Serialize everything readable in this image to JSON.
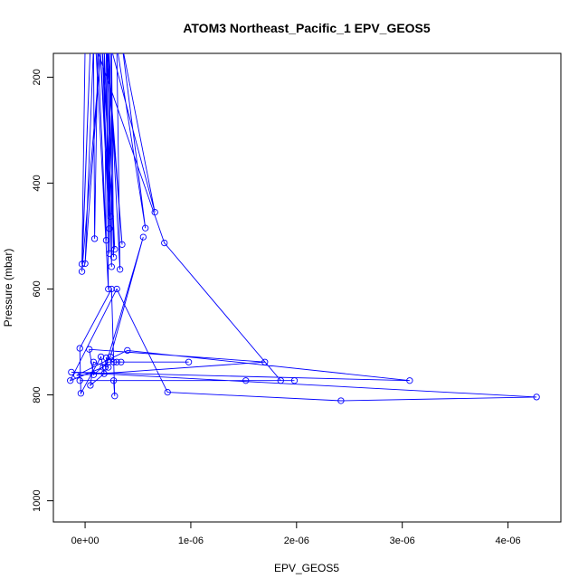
{
  "chart_data": {
    "type": "scatter",
    "title": "ATOM3 Northeast_Pacific_1 EPV_GEOS5",
    "xlabel": "EPV_GEOS5",
    "ylabel": "Pressure (mbar)",
    "xlim": [
      -3e-07,
      4.5e-06
    ],
    "ylim": [
      1040,
      155
    ],
    "y_reversed": true,
    "grid": false,
    "x_ticks": [
      {
        "value": 0,
        "label": "0e+00"
      },
      {
        "value": 1e-06,
        "label": "1e-06"
      },
      {
        "value": 2e-06,
        "label": "2e-06"
      },
      {
        "value": 3e-06,
        "label": "3e-06"
      },
      {
        "value": 4e-06,
        "label": "4e-06"
      }
    ],
    "y_ticks": [
      {
        "value": 200,
        "label": "200"
      },
      {
        "value": 400,
        "label": "400"
      },
      {
        "value": 600,
        "label": "600"
      },
      {
        "value": 800,
        "label": "800"
      },
      {
        "value": 1000,
        "label": "1000"
      }
    ],
    "series": [
      {
        "color": "#0000ff",
        "style": "line-with-open-circles",
        "points": [
          {
            "x": 0.0,
            "y": 140
          },
          {
            "x": -3e-08,
            "y": 553
          },
          {
            "x": 5e-08,
            "y": 140
          },
          {
            "x": -3e-08,
            "y": 567
          },
          {
            "x": 1.5e-07,
            "y": 140
          },
          {
            "x": 0.0,
            "y": 552
          },
          {
            "x": 8e-08,
            "y": 140
          },
          {
            "x": 9e-08,
            "y": 505
          },
          {
            "x": 1.2e-07,
            "y": 140
          },
          {
            "x": 2e-07,
            "y": 508
          },
          {
            "x": 1.8e-07,
            "y": 140
          },
          {
            "x": 2.4e-07,
            "y": 463
          },
          {
            "x": 1.4e-07,
            "y": 140
          },
          {
            "x": 2.3e-07,
            "y": 486
          },
          {
            "x": 1.6e-07,
            "y": 140
          },
          {
            "x": 2.8e-07,
            "y": 525
          },
          {
            "x": 2e-07,
            "y": 140
          },
          {
            "x": 3.5e-07,
            "y": 516
          },
          {
            "x": 2.1e-07,
            "y": 140
          },
          {
            "x": 2.5e-07,
            "y": 558
          },
          {
            "x": 2.5e-07,
            "y": 140
          },
          {
            "x": 2.7e-07,
            "y": 540
          },
          {
            "x": 2.2e-07,
            "y": 140
          },
          {
            "x": 3.3e-07,
            "y": 563
          },
          {
            "x": 3e-07,
            "y": 140
          },
          {
            "x": 5.7e-07,
            "y": 485
          },
          {
            "x": 3.5e-07,
            "y": 140
          },
          {
            "x": 6.6e-07,
            "y": 455
          },
          {
            "x": 2.4e-07,
            "y": 140
          },
          {
            "x": 2.3e-07,
            "y": 533
          },
          {
            "x": 2e-07,
            "y": 140
          },
          {
            "x": 2.2e-07,
            "y": 600
          },
          {
            "x": 1e-07,
            "y": 140
          },
          {
            "x": 7.5e-07,
            "y": 513
          },
          {
            "x": 1.85e-06,
            "y": 773
          },
          {
            "x": 1.98e-06,
            "y": 773
          },
          {
            "x": 1.52e-06,
            "y": 773
          },
          {
            "x": -5e-08,
            "y": 773
          },
          {
            "x": 2.7e-07,
            "y": 773
          },
          {
            "x": 2.8e-07,
            "y": 802
          },
          {
            "x": 2.5e-07,
            "y": 600
          },
          {
            "x": -5e-08,
            "y": 712
          },
          {
            "x": -4e-08,
            "y": 797
          },
          {
            "x": 1.5e-07,
            "y": 728
          },
          {
            "x": 1.8e-07,
            "y": 760
          },
          {
            "x": 5e-08,
            "y": 782
          },
          {
            "x": 8e-08,
            "y": 738
          },
          {
            "x": 2.2e-07,
            "y": 748
          },
          {
            "x": 2e-07,
            "y": 730
          },
          {
            "x": 2.7e-07,
            "y": 738
          },
          {
            "x": 3e-07,
            "y": 738
          },
          {
            "x": 3.4e-07,
            "y": 738
          },
          {
            "x": 9.8e-07,
            "y": 738
          },
          {
            "x": 2.2e-07,
            "y": 738
          },
          {
            "x": 8e-08,
            "y": 762
          },
          {
            "x": 4e-08,
            "y": 714
          },
          {
            "x": 1.7e-06,
            "y": 738
          },
          {
            "x": -8e-08,
            "y": 763
          },
          {
            "x": 4e-07,
            "y": 716
          },
          {
            "x": 3.07e-06,
            "y": 773
          },
          {
            "x": -1.3e-07,
            "y": 757
          },
          {
            "x": 4.27e-06,
            "y": 804
          },
          {
            "x": 2.42e-06,
            "y": 811
          },
          {
            "x": 7.8e-07,
            "y": 795
          },
          {
            "x": 3e-07,
            "y": 600
          },
          {
            "x": -1.4e-07,
            "y": 773
          },
          {
            "x": 1.7e-07,
            "y": 748
          },
          {
            "x": 2.4e-07,
            "y": 728
          },
          {
            "x": 5.5e-07,
            "y": 502
          },
          {
            "x": 1.9e-07,
            "y": 748
          }
        ]
      }
    ]
  }
}
